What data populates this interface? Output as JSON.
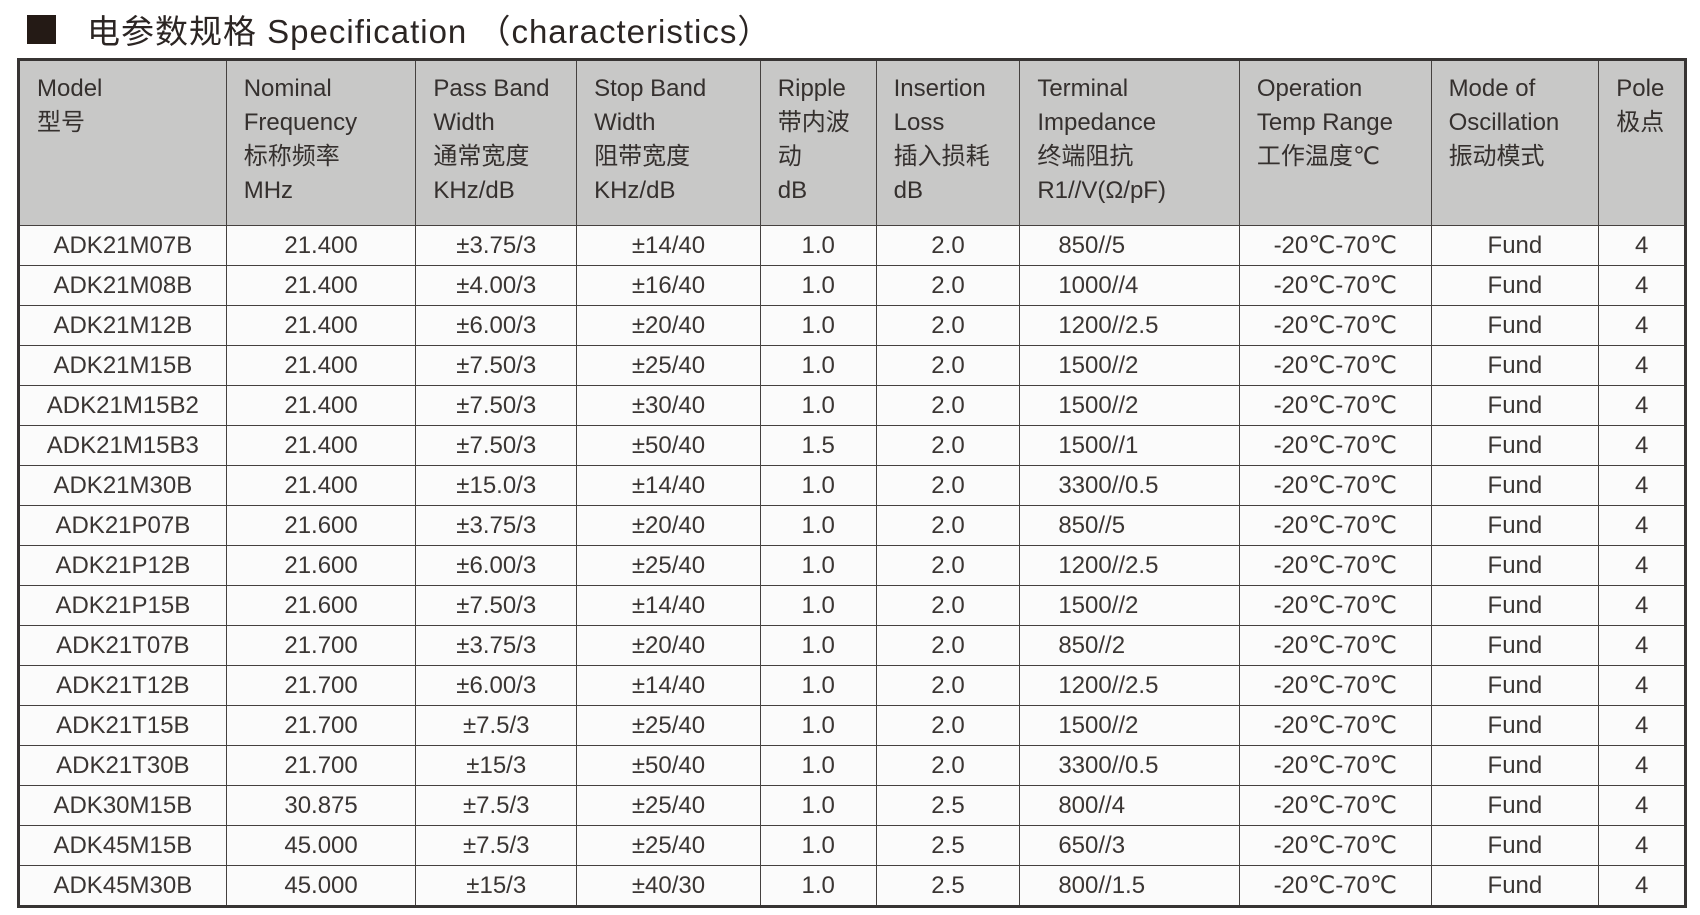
{
  "page": {
    "title": "电参数规格 Specification （characteristics）",
    "bullet_icon": "black-square",
    "colors": {
      "header_background": "#c8c8c7",
      "body_background": "#fbfbfb",
      "border": "#45413f",
      "bullet": "#241a15",
      "text": "#35302e"
    }
  },
  "table": {
    "columns": [
      {
        "id": "model",
        "label": "Model\n型号"
      },
      {
        "id": "nominal-frequency",
        "label": "Nominal\nFrequency\n标称频率\nMHz"
      },
      {
        "id": "pass-band-width",
        "label": "Pass Band\nWidth\n通常宽度\nKHz/dB"
      },
      {
        "id": "stop-band-width",
        "label": "Stop Band\nWidth\n阻带宽度\nKHz/dB"
      },
      {
        "id": "ripple",
        "label": "Ripple\n带内波动\ndB"
      },
      {
        "id": "insertion-loss",
        "label": "Insertion\nLoss\n插入损耗\ndB"
      },
      {
        "id": "terminal-impedance",
        "label": "Terminal\nImpedance\n终端阻抗\nR1//V(Ω/pF)"
      },
      {
        "id": "operation-temp-range",
        "label": "Operation\nTemp Range\n工作温度℃"
      },
      {
        "id": "mode-of-oscillation",
        "label": "Mode of\nOscillation\n振动模式"
      },
      {
        "id": "pole",
        "label": "Pole\n极点"
      }
    ],
    "rows": [
      [
        "ADK21M07B",
        "21.400",
        "±3.75/3",
        "±14/40",
        "1.0",
        "2.0",
        "850//5",
        "-20℃-70℃",
        "Fund",
        "4"
      ],
      [
        "ADK21M08B",
        "21.400",
        "±4.00/3",
        "±16/40",
        "1.0",
        "2.0",
        "1000//4",
        "-20℃-70℃",
        "Fund",
        "4"
      ],
      [
        "ADK21M12B",
        "21.400",
        "±6.00/3",
        "±20/40",
        "1.0",
        "2.0",
        "1200//2.5",
        "-20℃-70℃",
        "Fund",
        "4"
      ],
      [
        "ADK21M15B",
        "21.400",
        "±7.50/3",
        "±25/40",
        "1.0",
        "2.0",
        "1500//2",
        "-20℃-70℃",
        "Fund",
        "4"
      ],
      [
        "ADK21M15B2",
        "21.400",
        "±7.50/3",
        "±30/40",
        "1.0",
        "2.0",
        "1500//2",
        "-20℃-70℃",
        "Fund",
        "4"
      ],
      [
        "ADK21M15B3",
        "21.400",
        "±7.50/3",
        "±50/40",
        "1.5",
        "2.0",
        "1500//1",
        "-20℃-70℃",
        "Fund",
        "4"
      ],
      [
        "ADK21M30B",
        "21.400",
        "±15.0/3",
        "±14/40",
        "1.0",
        "2.0",
        "3300//0.5",
        "-20℃-70℃",
        "Fund",
        "4"
      ],
      [
        "ADK21P07B",
        "21.600",
        "±3.75/3",
        "±20/40",
        "1.0",
        "2.0",
        "850//5",
        "-20℃-70℃",
        "Fund",
        "4"
      ],
      [
        "ADK21P12B",
        "21.600",
        "±6.00/3",
        "±25/40",
        "1.0",
        "2.0",
        "1200//2.5",
        "-20℃-70℃",
        "Fund",
        "4"
      ],
      [
        "ADK21P15B",
        "21.600",
        "±7.50/3",
        "±14/40",
        "1.0",
        "2.0",
        "1500//2",
        "-20℃-70℃",
        "Fund",
        "4"
      ],
      [
        "ADK21T07B",
        "21.700",
        "±3.75/3",
        "±20/40",
        "1.0",
        "2.0",
        "850//2",
        "-20℃-70℃",
        "Fund",
        "4"
      ],
      [
        "ADK21T12B",
        "21.700",
        "±6.00/3",
        "±14/40",
        "1.0",
        "2.0",
        "1200//2.5",
        "-20℃-70℃",
        "Fund",
        "4"
      ],
      [
        "ADK21T15B",
        "21.700",
        "±7.5/3",
        "±25/40",
        "1.0",
        "2.0",
        "1500//2",
        "-20℃-70℃",
        "Fund",
        "4"
      ],
      [
        "ADK21T30B",
        "21.700",
        "±15/3",
        "±50/40",
        "1.0",
        "2.0",
        "3300//0.5",
        "-20℃-70℃",
        "Fund",
        "4"
      ],
      [
        "ADK30M15B",
        "30.875",
        "±7.5/3",
        "±25/40",
        "1.0",
        "2.5",
        "800//4",
        "-20℃-70℃",
        "Fund",
        "4"
      ],
      [
        "ADK45M15B",
        "45.000",
        "±7.5/3",
        "±25/40",
        "1.0",
        "2.5",
        "650//3",
        "-20℃-70℃",
        "Fund",
        "4"
      ],
      [
        "ADK45M30B",
        "45.000",
        "±15/3",
        "±40/30",
        "1.0",
        "2.5",
        "800//1.5",
        "-20℃-70℃",
        "Fund",
        "4"
      ]
    ]
  }
}
